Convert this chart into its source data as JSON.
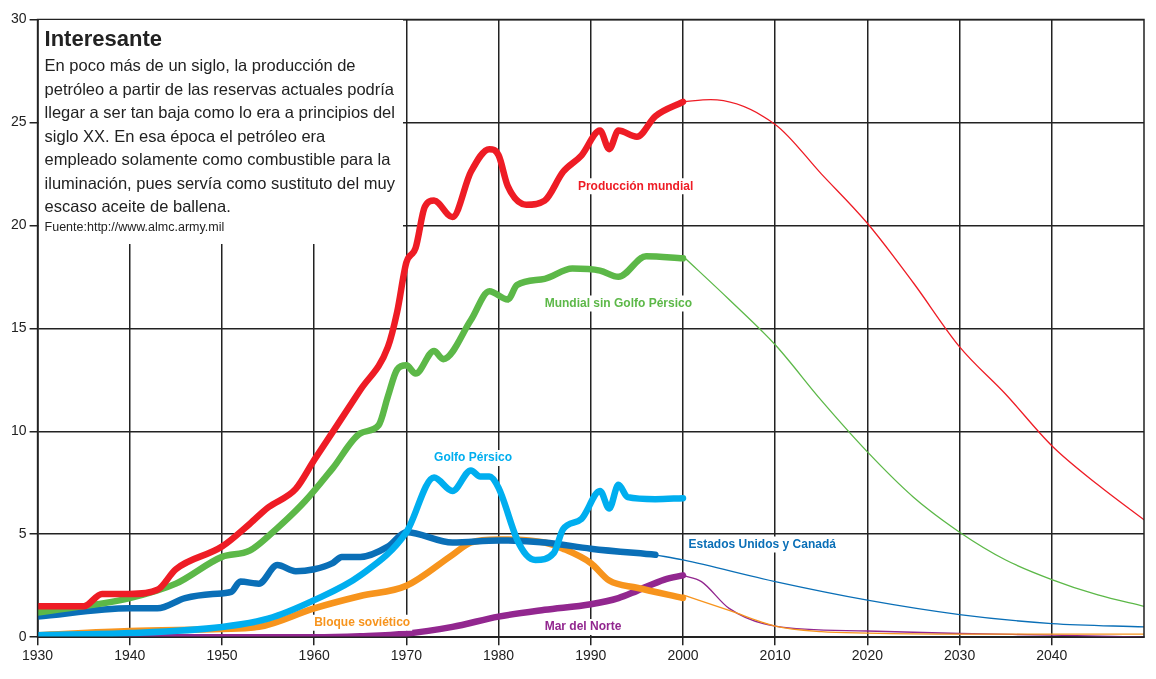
{
  "chart_data": {
    "type": "line",
    "title": "Interesante",
    "annotations": [
      "En poco más de un siglo, la producción de petróleo a partir de las reservas actuales podría llegar a ser tan baja como lo era a principios del siglo XX. En esa época el petróleo era empleado solamente como combustible para la iluminación, pues servía como sustituto del muy escaso aceite de ballena.",
      "Fuente:http://www.almc.army.mil"
    ],
    "xlim": [
      1930,
      2050
    ],
    "xticks": [
      1930,
      1940,
      1950,
      1960,
      1970,
      1980,
      1990,
      2000,
      2010,
      2020,
      2030,
      2040
    ],
    "ylim": [
      0,
      30
    ],
    "yticks": [
      0,
      5,
      10,
      15,
      20,
      25,
      30
    ],
    "grid": true,
    "legend": false,
    "marker": "none",
    "line_style": "solid",
    "series": [
      {
        "name": "Producción mundial",
        "color": "#ee1c25",
        "x": [
          1930,
          1935,
          1937,
          1940,
          1943,
          1945,
          1950,
          1953,
          1955,
          1958,
          1960,
          1965,
          1968,
          1969,
          1970,
          1971,
          1972,
          1973,
          1975,
          1977,
          1979,
          1980,
          1981,
          1983,
          1985,
          1987,
          1989,
          1991,
          1992,
          1993,
          1995,
          1997,
          2000
        ],
        "values": [
          1.5,
          1.5,
          2.1,
          2.1,
          2.3,
          3.3,
          4.4,
          5.5,
          6.3,
          7.2,
          8.6,
          12.0,
          14.1,
          15.8,
          18.2,
          18.9,
          20.9,
          21.2,
          20.4,
          22.6,
          23.7,
          23.4,
          21.9,
          21.0,
          21.2,
          22.6,
          23.4,
          24.6,
          23.7,
          24.6,
          24.3,
          25.3,
          26.0
        ]
      },
      {
        "name": "Mundial sin Golfo Pérsico",
        "color": "#5cb848",
        "x": [
          1930,
          1940,
          1945,
          1950,
          1953,
          1956,
          1959,
          1962,
          1965,
          1967,
          1968,
          1969,
          1970,
          1971,
          1973,
          1974,
          1977,
          1979,
          1981,
          1982,
          1985,
          1988,
          1991,
          1993,
          1996,
          2000
        ],
        "values": [
          1.2,
          1.9,
          2.6,
          3.9,
          4.2,
          5.3,
          6.6,
          8.2,
          9.9,
          10.3,
          11.7,
          13.0,
          13.2,
          12.8,
          13.9,
          13.5,
          15.4,
          16.8,
          16.4,
          17.1,
          17.4,
          17.9,
          17.8,
          17.5,
          18.5,
          18.4
        ]
      },
      {
        "name": "Golfo Pérsico",
        "color": "#00aeef",
        "x": [
          1930,
          1940,
          1950,
          1955,
          1960,
          1965,
          1970,
          1973,
          1975,
          1977,
          1978,
          1979,
          1980,
          1982,
          1983,
          1984,
          1986,
          1987,
          1989,
          1991,
          1992,
          1993,
          1994,
          1997,
          2000
        ],
        "values": [
          0.1,
          0.2,
          0.5,
          0.9,
          1.8,
          3.0,
          5.1,
          7.75,
          7.1,
          8.1,
          7.8,
          7.8,
          7.25,
          4.75,
          4.0,
          3.75,
          4.1,
          5.25,
          5.75,
          7.1,
          6.25,
          7.4,
          6.8,
          6.7,
          6.75
        ]
      },
      {
        "name": "Estados Unidos y Canadá",
        "color": "#0a6fb7",
        "x": [
          1930,
          1940,
          1943,
          1946,
          1949,
          1951,
          1952,
          1954,
          1956,
          1958,
          1960,
          1962,
          1963,
          1965,
          1968,
          1970,
          1975,
          1980,
          1985,
          1990,
          1997
        ],
        "values": [
          1.0,
          1.4,
          1.4,
          1.9,
          2.1,
          2.2,
          2.7,
          2.6,
          3.5,
          3.2,
          3.3,
          3.6,
          3.9,
          3.9,
          4.4,
          5.1,
          4.6,
          4.7,
          4.6,
          4.3,
          4.0
        ]
      },
      {
        "name": "Bloque soviético",
        "color": "#f7941d",
        "x": [
          1930,
          1940,
          1950,
          1954,
          1960,
          1965,
          1970,
          1975,
          1977,
          1980,
          1985,
          1987,
          1990,
          1992,
          1995,
          2000
        ],
        "values": [
          0.1,
          0.3,
          0.4,
          0.5,
          1.4,
          2.0,
          2.5,
          4.0,
          4.6,
          4.75,
          4.6,
          4.3,
          3.6,
          2.75,
          2.4,
          1.9
        ]
      },
      {
        "name": "Mar del Norte",
        "color": "#92278f",
        "x": [
          1930,
          1960,
          1965,
          1970,
          1975,
          1980,
          1985,
          1990,
          1993,
          1995,
          1998,
          2000
        ],
        "values": [
          0,
          0,
          0.05,
          0.17,
          0.5,
          1.0,
          1.33,
          1.6,
          1.9,
          2.25,
          2.8,
          3.0
        ]
      },
      {
        "color": "#ee1c25",
        "x": [
          2000,
          2003,
          2010,
          2015,
          2020,
          2025,
          2030,
          2035,
          2040,
          2045,
          2050
        ],
        "values": [
          26.0,
          26.1,
          24.9,
          22.5,
          20.1,
          17.2,
          14.1,
          11.8,
          9.3,
          7.4,
          5.7
        ]
      },
      {
        "color": "#5cb848",
        "x": [
          2000,
          2005,
          2010,
          2015,
          2020,
          2025,
          2030,
          2035,
          2040,
          2045,
          2050
        ],
        "values": [
          18.5,
          16.4,
          14.2,
          11.5,
          9.0,
          6.8,
          5.1,
          3.75,
          2.8,
          2.05,
          1.5
        ]
      },
      {
        "color": "#0a6fb7",
        "x": [
          1997,
          2000,
          2010,
          2020,
          2030,
          2040,
          2050
        ],
        "values": [
          4.0,
          3.75,
          2.7,
          1.8,
          1.1,
          0.66,
          0.5
        ]
      },
      {
        "color": "#f7941d",
        "x": [
          2000,
          2005,
          2010,
          2015,
          2020,
          2030,
          2040,
          2050
        ],
        "values": [
          2.05,
          1.3,
          0.54,
          0.27,
          0.2,
          0.15,
          0.15,
          0.15
        ]
      },
      {
        "color": "#92278f",
        "x": [
          2000,
          2002,
          2005,
          2010,
          2020,
          2030,
          2040,
          2050
        ],
        "values": [
          3.0,
          2.7,
          1.4,
          0.54,
          0.3,
          0.18,
          0.1,
          0.0
        ]
      }
    ]
  }
}
